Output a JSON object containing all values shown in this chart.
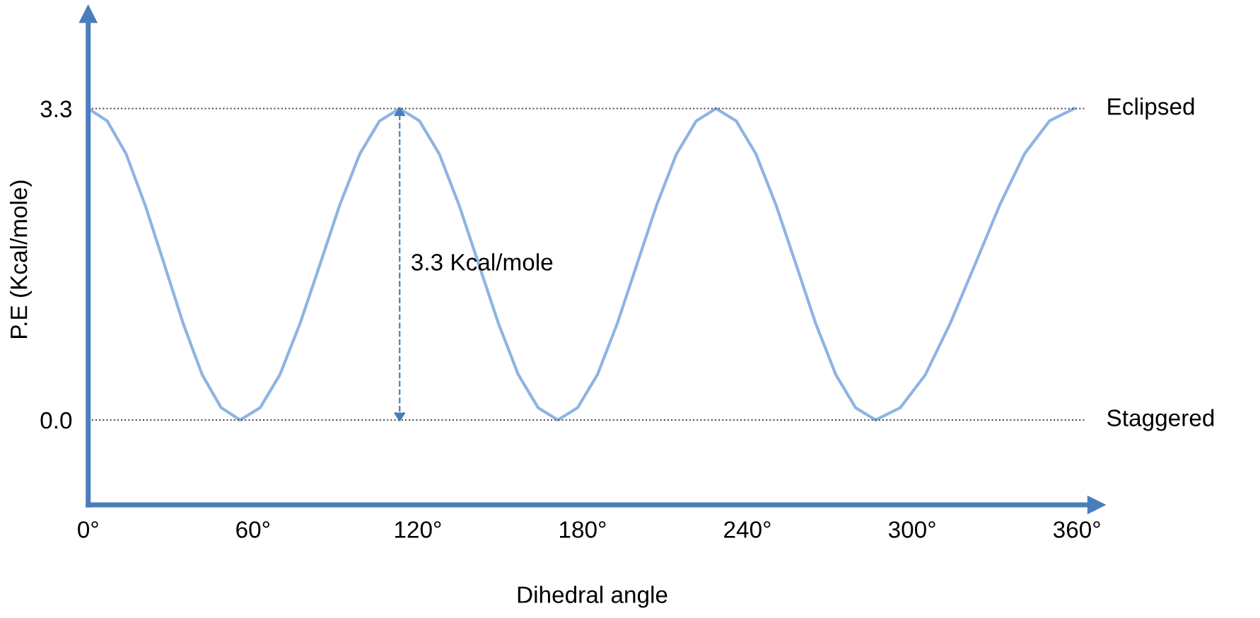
{
  "chart_data": {
    "type": "line",
    "xlabel": "Dihedral angle",
    "ylabel": "P.E (Kcal/mole)",
    "xlim": [
      0,
      367
    ],
    "ylim": [
      -0.9,
      4.3
    ],
    "xticks": [
      {
        "value": 0,
        "label": "0°"
      },
      {
        "value": 60,
        "label": "60°"
      },
      {
        "value": 120,
        "label": "120°"
      },
      {
        "value": 180,
        "label": "180°"
      },
      {
        "value": 240,
        "label": "240°"
      },
      {
        "value": 300,
        "label": "300°"
      },
      {
        "value": 360,
        "label": "360°"
      }
    ],
    "yticks": [
      {
        "value": 0,
        "label": "0.0"
      },
      {
        "value": 3.3,
        "label": "3.3"
      }
    ],
    "grid": false,
    "legend": false,
    "marker": "none",
    "line_style": "solid",
    "series": [
      {
        "color": "#8eb4e3",
        "x": [
          0,
          6.9,
          13.8,
          20.7,
          27.7,
          34.6,
          41.5,
          48.4,
          55.3,
          62.6,
          69.8,
          77.1,
          84.4,
          91.6,
          98.9,
          106.1,
          113.4,
          120.6,
          127.8,
          135,
          142.2,
          149.4,
          156.6,
          163.8,
          171,
          178.2,
          185.4,
          192.6,
          199.8,
          207,
          214.2,
          221.4,
          228.6,
          235.9,
          243.1,
          250.4,
          257.7,
          264.9,
          272.2,
          279.4,
          286.7,
          295.7,
          304.8,
          313.8,
          322.9,
          331.9,
          340.9,
          350,
          359
        ],
        "values": [
          3.3,
          3.17,
          2.82,
          2.28,
          1.65,
          1.02,
          0.48,
          0.13,
          0,
          0.13,
          0.48,
          1.02,
          1.65,
          2.28,
          2.82,
          3.17,
          3.3,
          3.17,
          2.82,
          2.28,
          1.65,
          1.02,
          0.48,
          0.13,
          0,
          0.13,
          0.48,
          1.02,
          1.65,
          2.28,
          2.82,
          3.17,
          3.3,
          3.17,
          2.82,
          2.28,
          1.65,
          1.02,
          0.48,
          0.13,
          0,
          0.13,
          0.48,
          1.02,
          1.65,
          2.28,
          2.82,
          3.17,
          3.3
        ]
      }
    ],
    "ref_lines": [
      {
        "axis": "y",
        "value": 3.3,
        "label": "Eclipsed",
        "color": "#404040",
        "line_style": "dotted"
      },
      {
        "axis": "y",
        "value": 0,
        "label": "Staggered",
        "color": "#404040",
        "line_style": "dotted"
      }
    ],
    "annotations": [
      "3.3 Kcal/mole"
    ]
  }
}
